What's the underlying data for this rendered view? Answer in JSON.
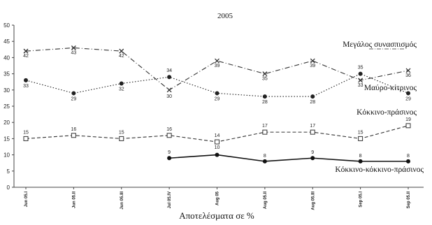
{
  "chart_data": {
    "type": "line",
    "title": "2005",
    "xlabel": "Αποτελέσματα σε %",
    "ylabel": "",
    "ylim": [
      0,
      50
    ],
    "y_ticks": [
      0,
      5,
      10,
      15,
      20,
      25,
      30,
      35,
      40,
      45,
      50
    ],
    "categories": [
      "Jun 05.I",
      "Jun 05.II",
      "Jun 05.III",
      "Jul 05.IV",
      "Aug 05",
      "Aug 05.II",
      "Aug 05.III",
      "Sep 05.I",
      "Sep 05.II"
    ],
    "grid": false,
    "series": [
      {
        "name": "Μεγάλος συνασπισμός",
        "color": "#333333",
        "marker": "x",
        "line_style": "dash-dot",
        "values": [
          42,
          43,
          42,
          30,
          39,
          35,
          39,
          33,
          36
        ],
        "labels": [
          "42",
          "43",
          "42",
          "30",
          "39",
          "35",
          "39",
          "33",
          "36"
        ]
      },
      {
        "name": "Μαύρο-κίτρινος",
        "color": "#222222",
        "marker": "filled-circle",
        "line_style": "dotted",
        "values": [
          33,
          29,
          32,
          34,
          29,
          28,
          28,
          35,
          29
        ],
        "labels": [
          "33",
          "29",
          "32",
          "34",
          "29",
          "28",
          "28",
          "35",
          "29"
        ]
      },
      {
        "name": "Κόκκινο-πράσινος",
        "color": "#333333",
        "marker": "open-square",
        "line_style": "dashed",
        "values": [
          15,
          16,
          15,
          16,
          14,
          17,
          17,
          15,
          19
        ],
        "labels": [
          "15",
          "16",
          "15",
          "16",
          "14",
          "17",
          "17",
          "15",
          "19"
        ],
        "extra_labels": [
          {
            "index": 4,
            "text": "10"
          }
        ]
      },
      {
        "name": "Κόκκινο-κόκκινο-πράσινος",
        "color": "#111111",
        "marker": "filled-circle",
        "line_style": "solid",
        "values": [
          null,
          null,
          null,
          9,
          10,
          8,
          9,
          8,
          8
        ],
        "labels": [
          "",
          "",
          "",
          "9",
          "",
          "8",
          "9",
          "8",
          "8"
        ]
      }
    ]
  }
}
